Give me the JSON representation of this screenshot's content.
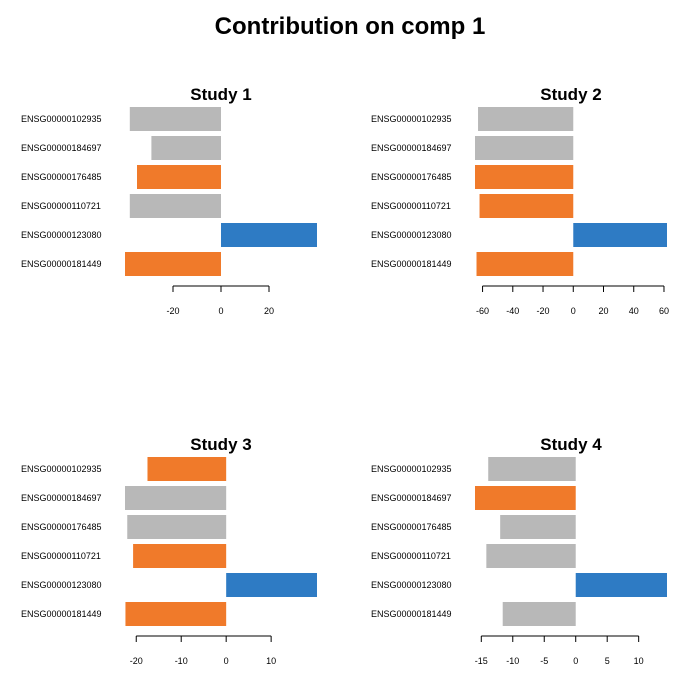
{
  "chart_data": {
    "type": "bar",
    "title": "Contribution on comp 1",
    "orientation": "horizontal",
    "colors": {
      "gray": "#b8b8b8",
      "orange": "#f07a2a",
      "blue": "#2e7bc4"
    },
    "panels": [
      {
        "title": "Study 1",
        "categories": [
          "ENSG00000102935",
          "ENSG00000184697",
          "ENSG00000176485",
          "ENSG00000110721",
          "ENSG00000123080",
          "ENSG00000181449"
        ],
        "values": [
          -38,
          -29,
          -35,
          -38,
          40,
          -40
        ],
        "bar_colors": [
          "gray",
          "gray",
          "orange",
          "gray",
          "blue",
          "orange"
        ],
        "xticks": [
          -20,
          0,
          20
        ],
        "xlim": [
          -40,
          40
        ]
      },
      {
        "title": "Study 2",
        "categories": [
          "ENSG00000102935",
          "ENSG00000184697",
          "ENSG00000176485",
          "ENSG00000110721",
          "ENSG00000123080",
          "ENSG00000181449"
        ],
        "values": [
          -63,
          -65,
          -65,
          -62,
          62,
          -64
        ],
        "bar_colors": [
          "gray",
          "gray",
          "orange",
          "orange",
          "blue",
          "orange"
        ],
        "xticks": [
          -60,
          -40,
          -20,
          0,
          20,
          40,
          60
        ],
        "xlim": [
          -65,
          62
        ]
      },
      {
        "title": "Study 3",
        "categories": [
          "ENSG00000102935",
          "ENSG00000184697",
          "ENSG00000176485",
          "ENSG00000110721",
          "ENSG00000123080",
          "ENSG00000181449"
        ],
        "values": [
          -17.5,
          -22.5,
          -22.0,
          -20.7,
          20.2,
          -22.4
        ],
        "bar_colors": [
          "orange",
          "gray",
          "gray",
          "orange",
          "blue",
          "orange"
        ],
        "xticks": [
          -20,
          -10,
          0,
          10
        ],
        "xlim": [
          -22.5,
          20.2
        ]
      },
      {
        "title": "Study 4",
        "categories": [
          "ENSG00000102935",
          "ENSG00000184697",
          "ENSG00000176485",
          "ENSG00000110721",
          "ENSG00000123080",
          "ENSG00000181449"
        ],
        "values": [
          -13.9,
          -16.0,
          -12.0,
          -14.2,
          14.5,
          -11.6
        ],
        "bar_colors": [
          "gray",
          "orange",
          "gray",
          "gray",
          "blue",
          "gray"
        ],
        "xticks": [
          -15,
          -10,
          -5,
          0,
          5,
          10
        ],
        "xlim": [
          -16.0,
          14.5
        ]
      }
    ]
  }
}
